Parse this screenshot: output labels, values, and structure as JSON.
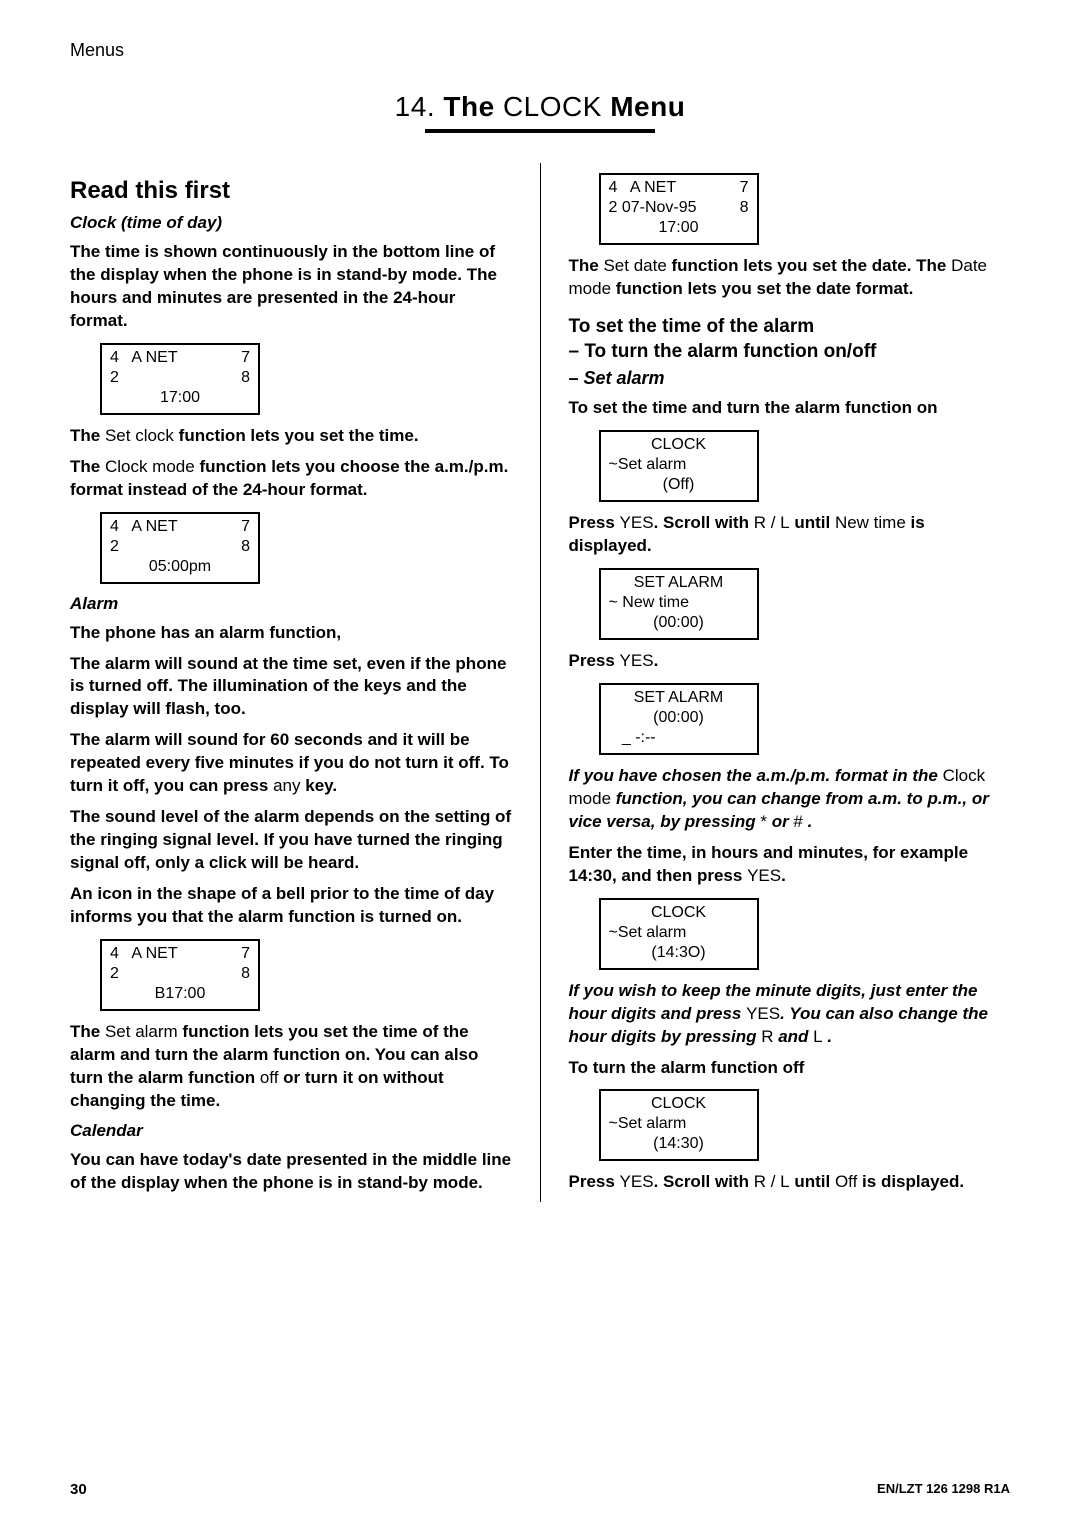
{
  "top_label": "Menus",
  "chapter": {
    "num": "14.",
    "the": "The",
    "clock": "CLOCK",
    "menu": "Menu"
  },
  "left": {
    "h2": "Read this first",
    "sub_clock": "Clock (time of day)",
    "p1": "The time is shown continuously in the bottom line of the display when the phone is in stand-by mode. The hours and minutes are presented in the 24-hour format.",
    "lcd1": {
      "r1l": "4   A NET",
      "r1r": "7",
      "r2l": "2",
      "r2r": "8",
      "r3": "17:00"
    },
    "p2a": "The ",
    "p2b": "Set clock",
    "p2c": "  function lets you set the time.",
    "p3a": "The ",
    "p3b": "Clock mode",
    "p3c": "  function lets you choose the a.m./p.m. format instead of the 24-hour format.",
    "lcd2": {
      "r1l": "4   A NET",
      "r1r": "7",
      "r2l": "2",
      "r2r": "8",
      "r3": "05:00pm"
    },
    "sub_alarm": "Alarm",
    "p4": "The phone has an alarm function,",
    "p5": "The alarm will sound at the time set, even if the phone is turned off. The illumination of the keys and the display will flash, too.",
    "p6a": "The alarm will sound for 60 seconds and it will be repeated every five minutes if you do not turn it off. To turn it off, you can press ",
    "p6b": "any",
    "p6c": " key.",
    "p7": "The sound level of the alarm depends on the setting of the ringing signal level. If you have turned the ringing signal off, only a click will be heard.",
    "p8": "An icon in the shape of a bell prior to the time of day informs you that the alarm function is turned on.",
    "lcd3": {
      "r1l": "4   A NET",
      "r1r": "7",
      "r2l": "2",
      "r2r": "8",
      "r3": "B17:00"
    },
    "p9a": "The ",
    "p9b": "Set alarm",
    "p9c": "  function lets you set the time of the alarm and turn the alarm function on. You can also turn the alarm function ",
    "p9d": "off",
    "p9e": " or turn it on without changing the time.",
    "sub_cal": "Calendar",
    "p10": "You can have today's date presented in the middle line of the display when the phone is in stand-by mode."
  },
  "right": {
    "lcd1": {
      "r1l": "4   A NET",
      "r1r": "7",
      "r2l": "2 07-Nov-95",
      "r2r": "8",
      "r3": "17:00"
    },
    "p1a": "The ",
    "p1b": "Set date",
    "p1c": "  function lets you set the date. The ",
    "p1d": "Date mode",
    "p1e": "  function lets you set the date format.",
    "h3a": "To set the time of the alarm",
    "h3b": "– To turn the alarm function on/off",
    "h3sub_prefix": "– ",
    "h3sub": "Set alarm",
    "p2": "To set the time and turn the alarm function on",
    "lcd2": {
      "r1": "CLOCK",
      "r2": "~Set alarm",
      "r3": "(Off)"
    },
    "p3a": "Press ",
    "p3b": "YES",
    "p3c": ". Scroll with ",
    "p3d": "R",
    "p3e": " / ",
    "p3f": "L",
    "p3g": "  until ",
    "p3h": "New time",
    "p3i": "  is displayed.",
    "lcd3": {
      "r1": "SET ALARM",
      "r2": "~ New time",
      "r3": "(00:00)"
    },
    "p4a": "Press ",
    "p4b": "YES",
    "p4c": ".",
    "lcd4": {
      "r1": "SET ALARM",
      "r2": "(00:00)",
      "r3": "_ -:--"
    },
    "p5a": "If you have chosen the a.m./p.m. format in the ",
    "p5b": "Clock mode",
    "p5c": "  function, you can change from a.m. to p.m., or vice versa, by pressing ",
    "p5d": "*",
    "p5e": " or ",
    "p5f": "#",
    "p5g": " .",
    "p6a": "Enter the time, in hours and minutes, for example 14:30, and then press ",
    "p6b": "YES",
    "p6c": ".",
    "lcd5": {
      "r1": "CLOCK",
      "r2": "~Set alarm",
      "r3": "(14:3O)"
    },
    "p7a": "If you wish to keep the minute digits, just enter the hour digits and press ",
    "p7b": "YES",
    "p7c": ". You can also change the hour digits by pressing ",
    "p7d": "R",
    "p7e": " and ",
    "p7f": "L",
    "p7g": " .",
    "p8": "To turn the alarm function off",
    "lcd6": {
      "r1": "CLOCK",
      "r2": "~Set alarm",
      "r3": "(14:30)"
    },
    "p9a": "Press ",
    "p9b": "YES",
    "p9c": ". Scroll with ",
    "p9d": "R",
    "p9e": " / ",
    "p9f": "L",
    "p9g": "  until ",
    "p9h": "Off",
    "p9i": "  is displayed."
  },
  "footer": {
    "page": "30",
    "doc": "EN/LZT 126 1298  R1A"
  }
}
